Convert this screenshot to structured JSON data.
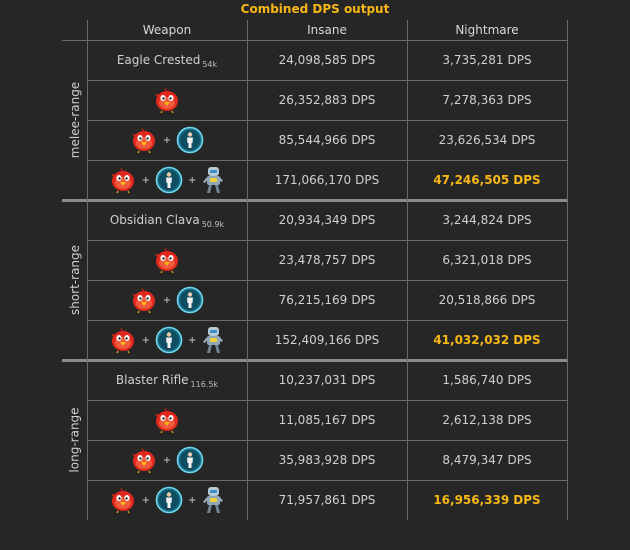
{
  "title": "Combined DPS output",
  "headers": {
    "weapon": "Weapon",
    "insane": "Insane",
    "nightmare": "Nightmare"
  },
  "unit": "DPS",
  "plus": "+",
  "colors": {
    "background": "#262626",
    "highlight": "#f7b817",
    "grid": "#6a6a6a"
  },
  "groups": [
    {
      "label": "melee-range",
      "rows": [
        {
          "kind": "weapon",
          "weapon_name": "Eagle Crested",
          "weapon_sub": "54k",
          "insane": "24,098,585",
          "nightmare": "3,735,281",
          "best": false
        },
        {
          "kind": "icons",
          "icons": [
            "red-bird-icon"
          ],
          "insane": "26,352,883",
          "nightmare": "7,278,363",
          "best": false
        },
        {
          "kind": "icons",
          "icons": [
            "red-bird-icon",
            "figure-medallion-icon"
          ],
          "insane": "85,544,966",
          "nightmare": "23,626,534",
          "best": false
        },
        {
          "kind": "icons",
          "icons": [
            "red-bird-icon",
            "figure-medallion-icon",
            "robot-icon"
          ],
          "insane": "171,066,170",
          "nightmare": "47,246,505",
          "best": true
        }
      ]
    },
    {
      "label": "short-range",
      "rows": [
        {
          "kind": "weapon",
          "weapon_name": "Obsidian Clava",
          "weapon_sub": "50.9k",
          "insane": "20,934,349",
          "nightmare": "3,244,824",
          "best": false
        },
        {
          "kind": "icons",
          "icons": [
            "red-bird-icon"
          ],
          "insane": "23,478,757",
          "nightmare": "6,321,018",
          "best": false
        },
        {
          "kind": "icons",
          "icons": [
            "red-bird-icon",
            "figure-medallion-icon"
          ],
          "insane": "76,215,169",
          "nightmare": "20,518,866",
          "best": false
        },
        {
          "kind": "icons",
          "icons": [
            "red-bird-icon",
            "figure-medallion-icon",
            "robot-icon"
          ],
          "insane": "152,409,166",
          "nightmare": "41,032,032",
          "best": true
        }
      ]
    },
    {
      "label": "long-range",
      "rows": [
        {
          "kind": "weapon",
          "weapon_name": "Blaster Rifle",
          "weapon_sub": "116.5k",
          "insane": "10,237,031",
          "nightmare": "1,586,740",
          "best": false
        },
        {
          "kind": "icons",
          "icons": [
            "red-bird-icon"
          ],
          "insane": "11,085,167",
          "nightmare": "2,612,138",
          "best": false
        },
        {
          "kind": "icons",
          "icons": [
            "red-bird-icon",
            "figure-medallion-icon"
          ],
          "insane": "35,983,928",
          "nightmare": "8,479,347",
          "best": false
        },
        {
          "kind": "icons",
          "icons": [
            "red-bird-icon",
            "figure-medallion-icon",
            "robot-icon"
          ],
          "insane": "71,957,861",
          "nightmare": "16,956,339",
          "best": true
        }
      ]
    }
  ]
}
